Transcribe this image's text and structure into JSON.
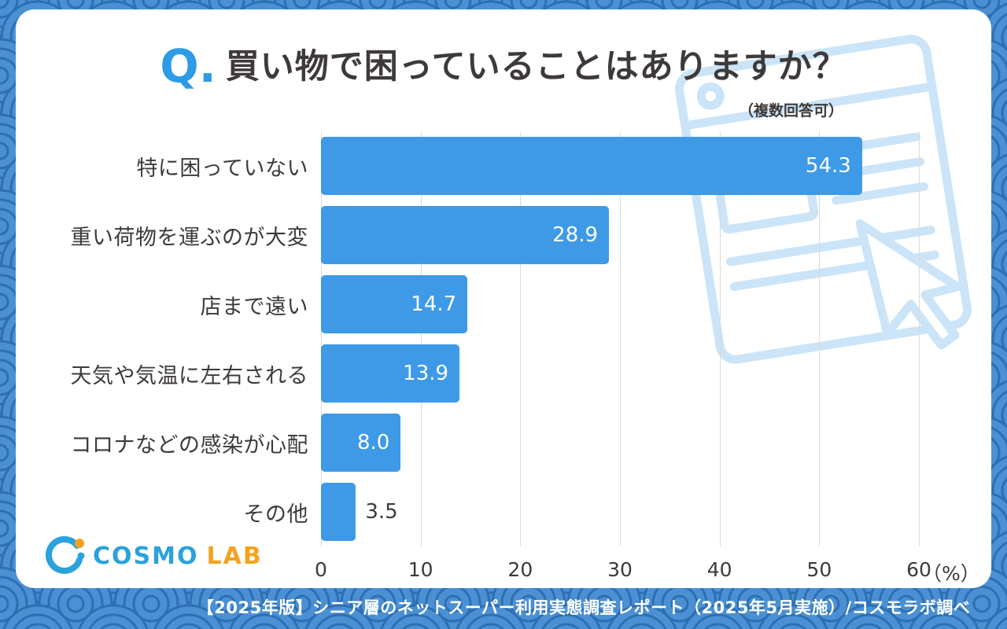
{
  "header": {
    "q_prefix": "Q.",
    "title": "買い物で困っていることはありますか？",
    "note": "（複数回答可）"
  },
  "chart_data": {
    "type": "bar",
    "orientation": "horizontal",
    "title": "買い物で困っていることはありますか？",
    "subtitle": "（複数回答可）",
    "categories": [
      "特に困っていない",
      "重い荷物を運ぶのが大変",
      "店まで遠い",
      "天気や気温に左右される",
      "コロナなどの感染が心配",
      "その他"
    ],
    "values": [
      54.3,
      28.9,
      14.7,
      13.9,
      8.0,
      3.5
    ],
    "value_labels": [
      "54.3",
      "28.9",
      "14.7",
      "13.9",
      "8.0",
      "3.5"
    ],
    "xticks": [
      0,
      10,
      20,
      30,
      40,
      50,
      60
    ],
    "axis_max": 60,
    "unit_label": "（%）",
    "bar_color": "#3e9ae6",
    "grid": true,
    "legend": "none"
  },
  "logo": {
    "brand_primary": "COSMO",
    "brand_secondary": "LAB"
  },
  "footer": {
    "text": "【2025年版】シニア層のネットスーパー利用実態調査レポート（2025年5月実施）/コスモラボ調べ"
  },
  "colors": {
    "background_blue": "#4a90d3",
    "wave_line": "#2e6fb3",
    "bar_blue": "#3e9ae6",
    "accent_blue": "#2d9be5",
    "text_dark": "#3e3a39",
    "deco_light_blue": "#cbe4f7",
    "logo_blue": "#2aa2de",
    "logo_orange": "#f6a21e"
  }
}
